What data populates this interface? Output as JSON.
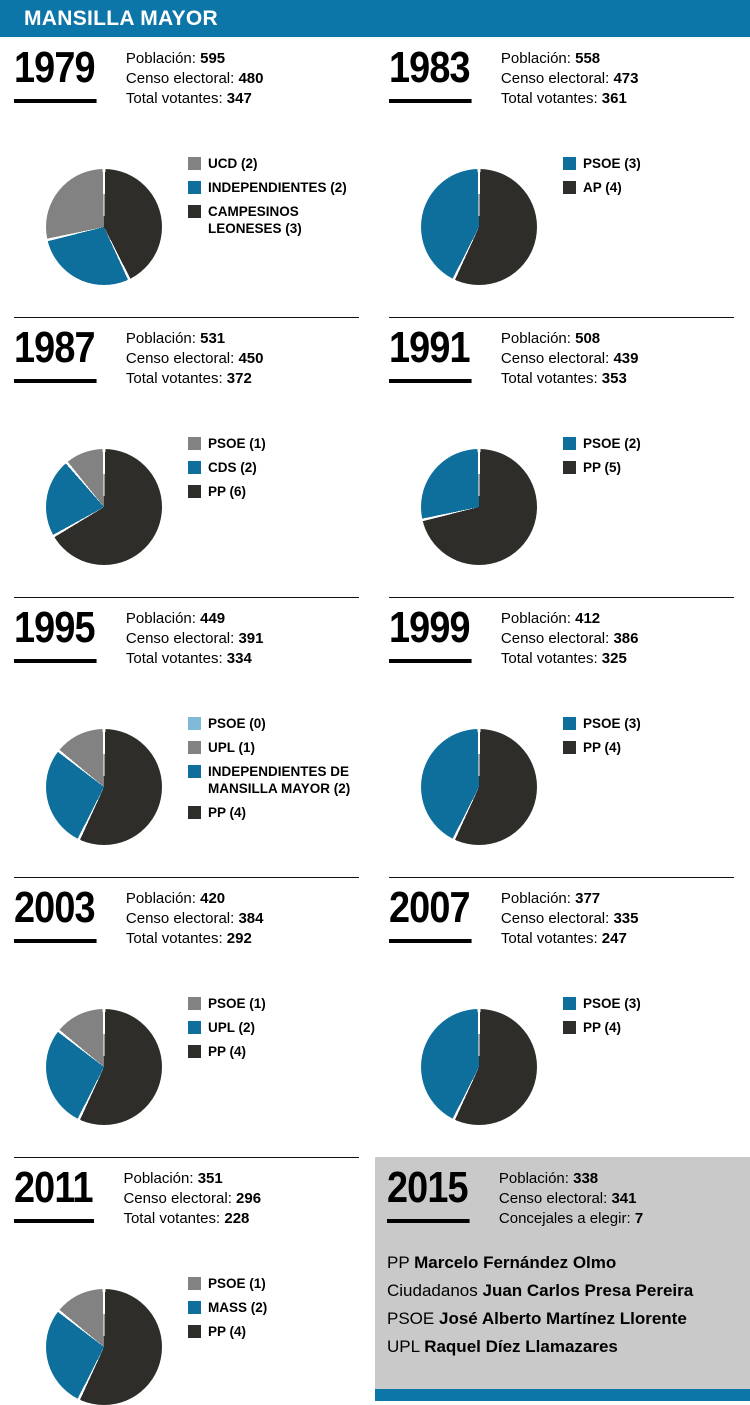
{
  "header": {
    "title": "MANSILLA MAYOR"
  },
  "palette": {
    "header_blue": "#0d76a8",
    "pie_blue": "#0f6f9c",
    "pie_dark": "#2e2d29",
    "pie_gray": "#828282",
    "pie_lightblue": "#7fbad8",
    "panel_gray": "#c9c9c9"
  },
  "stat_labels": {
    "poblacion": "Población:",
    "censo": "Censo electoral:",
    "votantes": "Total votantes:",
    "concejales": "Concejales a elegir:"
  },
  "chart_data": [
    {
      "type": "pie",
      "year": "1979",
      "poblacion": "595",
      "censo": "480",
      "votantes": "347",
      "slices": [
        {
          "label": "UCD (2)",
          "value": 2,
          "color": "pie_gray"
        },
        {
          "label": "INDEPENDIENTES (2)",
          "value": 2,
          "color": "pie_blue"
        },
        {
          "label": "CAMPESINOS LEONESES (3)",
          "value": 3,
          "color": "pie_dark"
        }
      ]
    },
    {
      "type": "pie",
      "year": "1983",
      "poblacion": "558",
      "censo": "473",
      "votantes": "361",
      "slices": [
        {
          "label": "PSOE (3)",
          "value": 3,
          "color": "pie_blue"
        },
        {
          "label": "AP (4)",
          "value": 4,
          "color": "pie_dark"
        }
      ]
    },
    {
      "type": "pie",
      "year": "1987",
      "poblacion": "531",
      "censo": "450",
      "votantes": "372",
      "slices": [
        {
          "label": "PSOE (1)",
          "value": 1,
          "color": "pie_gray"
        },
        {
          "label": "CDS (2)",
          "value": 2,
          "color": "pie_blue"
        },
        {
          "label": "PP (6)",
          "value": 6,
          "color": "pie_dark"
        }
      ]
    },
    {
      "type": "pie",
      "year": "1991",
      "poblacion": "508",
      "censo": "439",
      "votantes": "353",
      "slices": [
        {
          "label": "PSOE (2)",
          "value": 2,
          "color": "pie_blue"
        },
        {
          "label": "PP (5)",
          "value": 5,
          "color": "pie_dark"
        }
      ]
    },
    {
      "type": "pie",
      "year": "1995",
      "poblacion": "449",
      "censo": "391",
      "votantes": "334",
      "slices": [
        {
          "label": "PSOE (0)",
          "value": 0,
          "color": "pie_lightblue"
        },
        {
          "label": "UPL (1)",
          "value": 1,
          "color": "pie_gray"
        },
        {
          "label": "INDEPENDIENTES DE MANSILLA MAYOR (2)",
          "value": 2,
          "color": "pie_blue"
        },
        {
          "label": "PP (4)",
          "value": 4,
          "color": "pie_dark"
        }
      ]
    },
    {
      "type": "pie",
      "year": "1999",
      "poblacion": "412",
      "censo": "386",
      "votantes": "325",
      "slices": [
        {
          "label": "PSOE (3)",
          "value": 3,
          "color": "pie_blue"
        },
        {
          "label": "PP (4)",
          "value": 4,
          "color": "pie_dark"
        }
      ]
    },
    {
      "type": "pie",
      "year": "2003",
      "poblacion": "420",
      "censo": "384",
      "votantes": "292",
      "slices": [
        {
          "label": "PSOE (1)",
          "value": 1,
          "color": "pie_gray"
        },
        {
          "label": "UPL (2)",
          "value": 2,
          "color": "pie_blue"
        },
        {
          "label": "PP (4)",
          "value": 4,
          "color": "pie_dark"
        }
      ]
    },
    {
      "type": "pie",
      "year": "2007",
      "poblacion": "377",
      "censo": "335",
      "votantes": "247",
      "slices": [
        {
          "label": "PSOE (3)",
          "value": 3,
          "color": "pie_blue"
        },
        {
          "label": "PP (4)",
          "value": 4,
          "color": "pie_dark"
        }
      ]
    },
    {
      "type": "pie",
      "year": "2011",
      "poblacion": "351",
      "censo": "296",
      "votantes": "228",
      "slices": [
        {
          "label": "PSOE (1)",
          "value": 1,
          "color": "pie_gray"
        },
        {
          "label": "MASS (2)",
          "value": 2,
          "color": "pie_blue"
        },
        {
          "label": "PP (4)",
          "value": 4,
          "color": "pie_dark"
        }
      ]
    }
  ],
  "final_2015": {
    "year": "2015",
    "poblacion": "338",
    "censo": "341",
    "concejales": "7",
    "candidates": [
      {
        "party": "PP",
        "name": "Marcelo Fernández Olmo"
      },
      {
        "party": "Ciudadanos",
        "name": "Juan Carlos Presa Pereira"
      },
      {
        "party": "PSOE",
        "name": "José Alberto Martínez Llorente"
      },
      {
        "party": "UPL",
        "name": "Raquel Díez Llamazares"
      }
    ]
  }
}
